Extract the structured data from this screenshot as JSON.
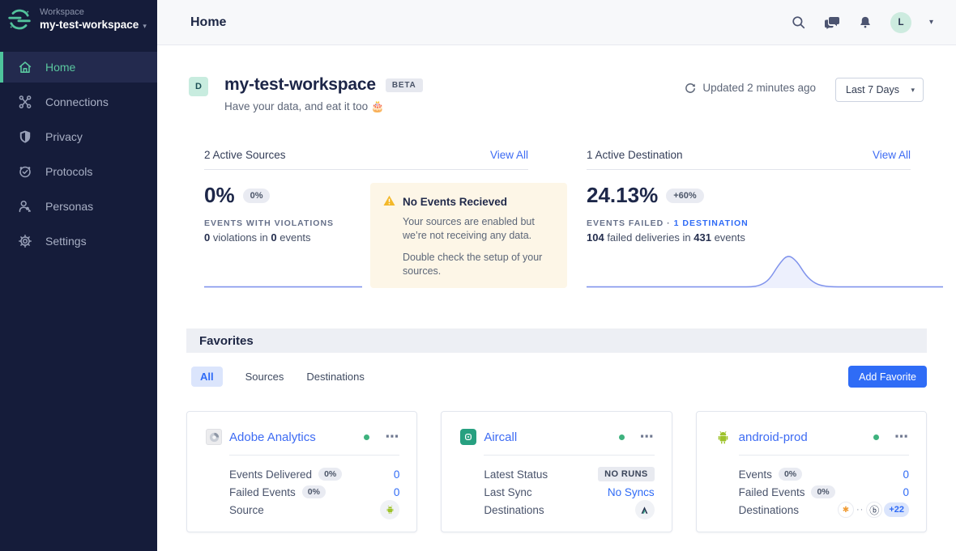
{
  "colors": {
    "brand_green": "#52c29c",
    "link_blue": "#3d6bf3",
    "primary_button_blue": "#2f6cf6",
    "warning_amber": "#f3b82a",
    "sidebar_navy": "#151c3a",
    "status_green": "#3eb27e",
    "sparkline_blue": "#8093ec"
  },
  "sidebar": {
    "logo_icon": "segment-logo-icon",
    "workspace_label": "Workspace",
    "workspace_name": "my-test-workspace",
    "items": [
      {
        "label": "Home",
        "icon": "home-icon",
        "active": true
      },
      {
        "label": "Connections",
        "icon": "connections-icon",
        "active": false
      },
      {
        "label": "Privacy",
        "icon": "privacy-icon",
        "active": false
      },
      {
        "label": "Protocols",
        "icon": "protocols-icon",
        "active": false
      },
      {
        "label": "Personas",
        "icon": "personas-icon",
        "active": false
      },
      {
        "label": "Settings",
        "icon": "settings-icon",
        "active": false
      }
    ]
  },
  "topbar": {
    "title": "Home",
    "icons": [
      "search-icon",
      "chat-icon",
      "notifications-icon"
    ],
    "avatar_initial": "L"
  },
  "workspace_header": {
    "avatar_initial": "D",
    "title": "my-test-workspace",
    "beta_badge": "BETA",
    "subtitle": "Have your data, and eat it too 🎂",
    "updated_text": "Updated 2 minutes ago",
    "time_range_selected": "Last 7 Days"
  },
  "sources_panel": {
    "header": "2 Active Sources",
    "view_all": "View All",
    "metric_value": "0%",
    "metric_delta": "0%",
    "metric_label": "EVENTS WITH VIOLATIONS",
    "detail_num1": "0",
    "detail_text1": " violations in ",
    "detail_num2": "0",
    "detail_text2": " events",
    "sparkline": {
      "type": "line",
      "values": [
        0,
        0,
        0,
        0,
        0,
        0,
        0,
        0,
        0,
        0,
        0,
        0
      ]
    },
    "warning": {
      "icon": "warning-triangle-icon",
      "title": "No Events Recieved",
      "body1": "Your sources are enabled but we’re not receiving any data.",
      "body2": "Double check the setup of your sources."
    }
  },
  "destinations_panel": {
    "header": "1 Active Destination",
    "view_all": "View All",
    "metric_value": "24.13%",
    "metric_delta": "+60%",
    "metric_label": "EVENTS FAILED ·",
    "metric_label_link": "1 DESTINATION",
    "detail_num1": "104",
    "detail_text1": " failed deliveries in ",
    "detail_num2": "431",
    "detail_text2": " events",
    "sparkline": {
      "type": "area",
      "values": [
        0,
        0,
        0,
        0,
        0,
        0,
        0,
        0,
        0,
        0,
        0,
        0,
        0,
        0,
        0,
        0,
        0,
        0,
        0,
        4,
        22,
        68,
        100,
        80,
        34,
        10,
        2,
        0,
        0,
        0,
        0,
        0,
        0,
        0,
        0,
        0,
        0,
        0,
        0,
        0
      ]
    }
  },
  "favorites": {
    "heading": "Favorites",
    "tabs": [
      {
        "label": "All",
        "active": true
      },
      {
        "label": "Sources",
        "active": false
      },
      {
        "label": "Destinations",
        "active": false
      }
    ],
    "add_button": "Add Favorite",
    "cards": [
      {
        "name": "Adobe Analytics",
        "icon": "adobe-analytics-logo-icon",
        "status": "active",
        "menu_glyph": "⋯",
        "rows": [
          {
            "label": "Events Delivered",
            "badge": "0%",
            "value": "0"
          },
          {
            "label": "Failed Events",
            "badge": "0%",
            "value": "0"
          },
          {
            "label": "Source",
            "value_icon": "android-source-icon"
          }
        ]
      },
      {
        "name": "Aircall",
        "icon": "aircall-logo-icon",
        "status": "active",
        "menu_glyph": "⋯",
        "rows": [
          {
            "label": "Latest Status",
            "status_badge": "NO RUNS"
          },
          {
            "label": "Last Sync",
            "link_value": "No Syncs"
          },
          {
            "label": "Destinations",
            "value_icon": "destination-a-logo-icon"
          }
        ]
      },
      {
        "name": "android-prod",
        "icon": "android-logo-icon",
        "status": "active",
        "menu_glyph": "⋯",
        "rows": [
          {
            "label": "Events",
            "badge": "0%",
            "value": "0"
          },
          {
            "label": "Failed Events",
            "badge": "0%",
            "value": "0"
          },
          {
            "label": "Destinations",
            "value_icons": [
              "destination-logo-1-icon",
              "destination-logo-2-icon"
            ],
            "overflow_count": "+22"
          }
        ]
      }
    ]
  }
}
